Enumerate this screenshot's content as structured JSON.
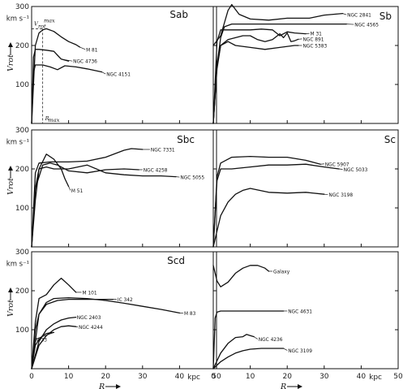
{
  "chart_data": [
    {
      "type": "line",
      "title": "Sab",
      "xlim": [
        0,
        50
      ],
      "ylim": [
        0,
        300
      ],
      "ylabel": "V_rot",
      "yunit": "km s⁻¹",
      "x_ticks": [
        "0",
        "10",
        "20",
        "30",
        "40",
        "50"
      ],
      "y_ticks": [
        "100",
        "200",
        "300"
      ],
      "annotations": [
        "V_rot^max",
        "R_max"
      ],
      "series": [
        {
          "name": "M 81",
          "x": [
            0,
            1,
            2,
            3,
            4,
            6,
            8,
            10,
            12,
            13
          ],
          "y": [
            0,
            200,
            232,
            240,
            243,
            236,
            222,
            210,
            202,
            196
          ]
        },
        {
          "name": "NGC 4736",
          "x": [
            0,
            0.5,
            1,
            2,
            4,
            6,
            7,
            8,
            10
          ],
          "y": [
            0,
            170,
            190,
            190,
            188,
            185,
            175,
            165,
            160
          ]
        },
        {
          "name": "NGC 4151",
          "x": [
            0,
            0.5,
            1,
            3,
            5,
            7,
            9,
            12,
            15,
            19
          ],
          "y": [
            0,
            130,
            150,
            150,
            145,
            138,
            148,
            145,
            140,
            132
          ]
        }
      ]
    },
    {
      "type": "line",
      "title": "Sb",
      "xlim": [
        0,
        50
      ],
      "ylim": [
        0,
        300
      ],
      "x_ticks": [
        "0",
        "10",
        "20",
        "30",
        "40",
        "50"
      ],
      "y_ticks": [
        "100",
        "200",
        "300"
      ],
      "series": [
        {
          "name": "NGC 2841",
          "x": [
            0,
            2,
            4,
            5,
            7,
            10,
            15,
            20,
            26,
            30,
            35
          ],
          "y": [
            200,
            225,
            290,
            305,
            280,
            268,
            265,
            270,
            270,
            278,
            282
          ]
        },
        {
          "name": "NGC 4565",
          "x": [
            0,
            1,
            2,
            3,
            5,
            7,
            10,
            14,
            20,
            28,
            36
          ],
          "y": [
            0,
            150,
            220,
            248,
            255,
            255,
            255,
            255,
            255,
            255,
            255
          ]
        },
        {
          "name": "M 31",
          "x": [
            0,
            1,
            2,
            4,
            7,
            10,
            13,
            16,
            18,
            20,
            22,
            25
          ],
          "y": [
            0,
            210,
            240,
            240,
            240,
            240,
            242,
            240,
            225,
            235,
            232,
            230
          ]
        },
        {
          "name": "NGC 891",
          "x": [
            0,
            1,
            2,
            4,
            6,
            8,
            10,
            12,
            14,
            16,
            18,
            19,
            20,
            21,
            22,
            23
          ],
          "y": [
            0,
            150,
            200,
            215,
            220,
            225,
            225,
            215,
            210,
            215,
            230,
            220,
            232,
            210,
            212,
            216
          ]
        },
        {
          "name": "NGC 5383",
          "x": [
            0,
            1,
            2,
            4,
            6,
            10,
            14,
            18,
            22,
            23
          ],
          "y": [
            0,
            140,
            200,
            210,
            200,
            195,
            190,
            195,
            200,
            200
          ]
        }
      ]
    },
    {
      "type": "line",
      "title": "Sbc",
      "xlim": [
        0,
        50
      ],
      "ylim": [
        0,
        300
      ],
      "ylabel": "V_rot",
      "yunit": "km s⁻¹",
      "x_ticks": [
        "0",
        "10",
        "20",
        "30",
        "40",
        "50"
      ],
      "y_ticks": [
        "100",
        "200",
        "300"
      ],
      "series": [
        {
          "name": "NGC 7331",
          "x": [
            0,
            1,
            2,
            5,
            10,
            15,
            20,
            25,
            27,
            30
          ],
          "y": [
            0,
            190,
            215,
            218,
            218,
            220,
            230,
            248,
            252,
            250
          ]
        },
        {
          "name": "NGC 4258",
          "x": [
            0,
            1,
            3,
            5,
            7,
            10,
            15,
            20,
            25,
            29
          ],
          "y": [
            0,
            150,
            210,
            215,
            210,
            195,
            190,
            198,
            200,
            198
          ]
        },
        {
          "name": "NGC 5055",
          "x": [
            0,
            1,
            2,
            4,
            6,
            10,
            15,
            20,
            25,
            30,
            35,
            39
          ],
          "y": [
            0,
            150,
            200,
            205,
            200,
            200,
            210,
            190,
            185,
            182,
            182,
            180
          ]
        },
        {
          "name": "M 51",
          "x": [
            0,
            1,
            2,
            4,
            6,
            8,
            9,
            10
          ],
          "y": [
            0,
            120,
            200,
            238,
            225,
            200,
            175,
            155
          ]
        }
      ]
    },
    {
      "type": "line",
      "title": "Sc",
      "xlim": [
        0,
        50
      ],
      "ylim": [
        0,
        300
      ],
      "x_ticks": [
        "0",
        "10",
        "20",
        "30",
        "40",
        "50"
      ],
      "y_ticks": [
        "100",
        "200",
        "300"
      ],
      "series": [
        {
          "name": "NGC 5907",
          "x": [
            0,
            1,
            2,
            5,
            10,
            15,
            20,
            25,
            29
          ],
          "y": [
            0,
            180,
            215,
            230,
            232,
            230,
            230,
            222,
            212
          ]
        },
        {
          "name": "NGC 5033",
          "x": [
            0,
            1,
            2,
            3,
            5,
            10,
            15,
            20,
            25,
            30,
            34
          ],
          "y": [
            0,
            170,
            200,
            200,
            200,
            205,
            210,
            210,
            212,
            205,
            200
          ]
        },
        {
          "name": "NGC 3198",
          "x": [
            0,
            2,
            4,
            6,
            8,
            10,
            15,
            20,
            25,
            30
          ],
          "y": [
            0,
            80,
            115,
            135,
            145,
            150,
            140,
            138,
            140,
            135
          ]
        }
      ]
    },
    {
      "type": "line",
      "title": "Scd",
      "xlim": [
        0,
        50
      ],
      "ylim": [
        0,
        300
      ],
      "ylabel": "V_rot",
      "yunit": "km s⁻¹",
      "xlabel": "R",
      "xunit": "kpc",
      "x_ticks": [
        "0",
        "10",
        "20",
        "30",
        "40",
        "50"
      ],
      "y_ticks": [
        "100",
        "200",
        "300"
      ],
      "series": [
        {
          "name": "M 101",
          "x": [
            0,
            1,
            2,
            4,
            6,
            8,
            10,
            12
          ],
          "y": [
            0,
            120,
            180,
            190,
            215,
            232,
            215,
            196
          ]
        },
        {
          "name": "IC 342",
          "x": [
            0,
            1,
            2,
            4,
            7,
            10,
            14,
            18,
            22
          ],
          "y": [
            0,
            100,
            140,
            165,
            175,
            178,
            178,
            178,
            178
          ]
        },
        {
          "name": "M 83",
          "x": [
            0,
            2,
            4,
            6,
            10,
            15,
            20,
            25,
            30,
            35,
            40
          ],
          "y": [
            0,
            140,
            170,
            180,
            182,
            180,
            175,
            168,
            160,
            152,
            143
          ]
        },
        {
          "name": "NGC 2403",
          "x": [
            0,
            2,
            4,
            6,
            8,
            10,
            12
          ],
          "y": [
            0,
            70,
            100,
            115,
            125,
            130,
            132
          ]
        },
        {
          "name": "NGC 4244",
          "x": [
            0,
            2,
            4,
            6,
            8,
            10,
            12
          ],
          "y": [
            0,
            60,
            85,
            100,
            108,
            110,
            108
          ]
        },
        {
          "name": "M 33",
          "x": [
            0,
            1,
            2,
            3,
            4,
            5,
            6
          ],
          "y": [
            0,
            60,
            75,
            85,
            90,
            92,
            93
          ]
        }
      ]
    },
    {
      "type": "line",
      "title": "",
      "xlim": [
        0,
        50
      ],
      "ylim": [
        0,
        300
      ],
      "xlabel": "R",
      "xunit": "kpc",
      "x_ticks": [
        "0",
        "10",
        "20",
        "30",
        "40",
        "50"
      ],
      "y_ticks": [
        "100",
        "200",
        "300"
      ],
      "series": [
        {
          "name": "Galaxy",
          "x": [
            0,
            0.5,
            1,
            2,
            4,
            6,
            8,
            10,
            12,
            14,
            15
          ],
          "y": [
            265,
            245,
            225,
            210,
            222,
            245,
            258,
            265,
            265,
            258,
            250
          ]
        },
        {
          "name": "NGC 4631",
          "x": [
            0,
            0.5,
            1,
            2,
            5,
            10,
            15,
            19
          ],
          "y": [
            0,
            130,
            145,
            148,
            148,
            148,
            148,
            148
          ]
        },
        {
          "name": "NGC 4236",
          "x": [
            0,
            2,
            4,
            6,
            8,
            9,
            10,
            11
          ],
          "y": [
            0,
            40,
            65,
            80,
            82,
            88,
            85,
            82
          ]
        },
        {
          "name": "NGC 3109",
          "x": [
            0,
            2,
            4,
            6,
            8,
            10,
            13,
            16,
            19
          ],
          "y": [
            0,
            18,
            30,
            40,
            46,
            50,
            52,
            52,
            52
          ]
        }
      ]
    }
  ]
}
